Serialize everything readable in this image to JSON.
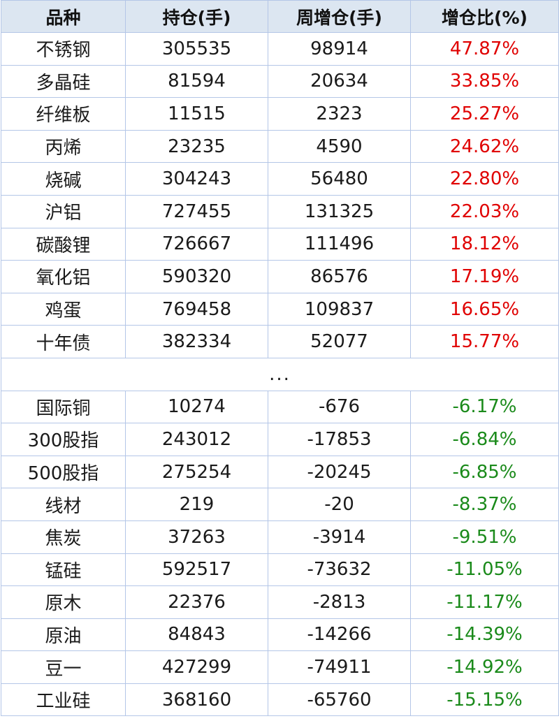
{
  "header": {
    "variety": "品种",
    "open_interest": "持仓(手)",
    "weekly_increase": "周增仓(手)",
    "increase_ratio": "增仓比(%)"
  },
  "top_rows": [
    {
      "variety": "不锈钢",
      "oi": "305535",
      "chg": "98914",
      "ratio": "47.87%"
    },
    {
      "variety": "多晶硅",
      "oi": "81594",
      "chg": "20634",
      "ratio": "33.85%"
    },
    {
      "variety": "纤维板",
      "oi": "11515",
      "chg": "2323",
      "ratio": "25.27%"
    },
    {
      "variety": "丙烯",
      "oi": "23235",
      "chg": "4590",
      "ratio": "24.62%"
    },
    {
      "variety": "烧碱",
      "oi": "304243",
      "chg": "56480",
      "ratio": "22.80%"
    },
    {
      "variety": "沪铝",
      "oi": "727455",
      "chg": "131325",
      "ratio": "22.03%"
    },
    {
      "variety": "碳酸锂",
      "oi": "726667",
      "chg": "111496",
      "ratio": "18.12%"
    },
    {
      "variety": "氧化铝",
      "oi": "590320",
      "chg": "86576",
      "ratio": "17.19%"
    },
    {
      "variety": "鸡蛋",
      "oi": "769458",
      "chg": "109837",
      "ratio": "16.65%"
    },
    {
      "variety": "十年债",
      "oi": "382334",
      "chg": "52077",
      "ratio": "15.77%"
    }
  ],
  "separator": "...",
  "bottom_rows": [
    {
      "variety": "国际铜",
      "oi": "10274",
      "chg": "-676",
      "ratio": "-6.17%"
    },
    {
      "variety": "300股指",
      "oi": "243012",
      "chg": "-17853",
      "ratio": "-6.84%"
    },
    {
      "variety": "500股指",
      "oi": "275254",
      "chg": "-20245",
      "ratio": "-6.85%"
    },
    {
      "variety": "线材",
      "oi": "219",
      "chg": "-20",
      "ratio": "-8.37%"
    },
    {
      "variety": "焦炭",
      "oi": "37263",
      "chg": "-3914",
      "ratio": "-9.51%"
    },
    {
      "variety": "锰硅",
      "oi": "592517",
      "chg": "-73632",
      "ratio": "-11.05%"
    },
    {
      "variety": "原木",
      "oi": "22376",
      "chg": "-2813",
      "ratio": "-11.17%"
    },
    {
      "variety": "原油",
      "oi": "84843",
      "chg": "-14266",
      "ratio": "-14.39%"
    },
    {
      "variety": "豆一",
      "oi": "427299",
      "chg": "-74911",
      "ratio": "-14.92%"
    },
    {
      "variety": "工业硅",
      "oi": "368160",
      "chg": "-65760",
      "ratio": "-15.15%"
    }
  ],
  "colors": {
    "positive": "#e00000",
    "negative": "#1a8a1a",
    "header_bg": "#dce6f1",
    "border": "#b4c6e7"
  }
}
